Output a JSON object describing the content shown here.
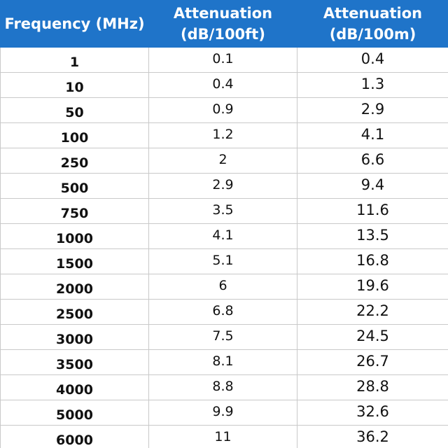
{
  "table": {
    "headers": {
      "frequency": "Frequency (MHz)",
      "att_ft_line1": "Attenuation",
      "att_ft_line2": "(dB/100ft)",
      "att_m_line1": "Attenuation",
      "att_m_line2": "(dB/100m)"
    },
    "rows": [
      {
        "frequency": "1",
        "att_ft": "0.1",
        "att_m": "0.4"
      },
      {
        "frequency": "10",
        "att_ft": "0.4",
        "att_m": "1.3"
      },
      {
        "frequency": "50",
        "att_ft": "0.9",
        "att_m": "2.9"
      },
      {
        "frequency": "100",
        "att_ft": "1.2",
        "att_m": "4.1"
      },
      {
        "frequency": "250",
        "att_ft": "2",
        "att_m": "6.6"
      },
      {
        "frequency": "500",
        "att_ft": "2.9",
        "att_m": "9.4"
      },
      {
        "frequency": "750",
        "att_ft": "3.5",
        "att_m": "11.6"
      },
      {
        "frequency": "1000",
        "att_ft": "4.1",
        "att_m": "13.5"
      },
      {
        "frequency": "1500",
        "att_ft": "5.1",
        "att_m": "16.8"
      },
      {
        "frequency": "2000",
        "att_ft": "6",
        "att_m": "19.6"
      },
      {
        "frequency": "2500",
        "att_ft": "6.8",
        "att_m": "22.2"
      },
      {
        "frequency": "3000",
        "att_ft": "7.5",
        "att_m": "24.5"
      },
      {
        "frequency": "3500",
        "att_ft": "8.1",
        "att_m": "26.7"
      },
      {
        "frequency": "4000",
        "att_ft": "8.8",
        "att_m": "28.8"
      },
      {
        "frequency": "5000",
        "att_ft": "9.9",
        "att_m": "32.6"
      },
      {
        "frequency": "6000",
        "att_ft": "11",
        "att_m": "36.2"
      }
    ]
  },
  "colors": {
    "header_background": "#1f74c9",
    "header_text": "#ffffff",
    "grid": "#c9c9c9"
  }
}
